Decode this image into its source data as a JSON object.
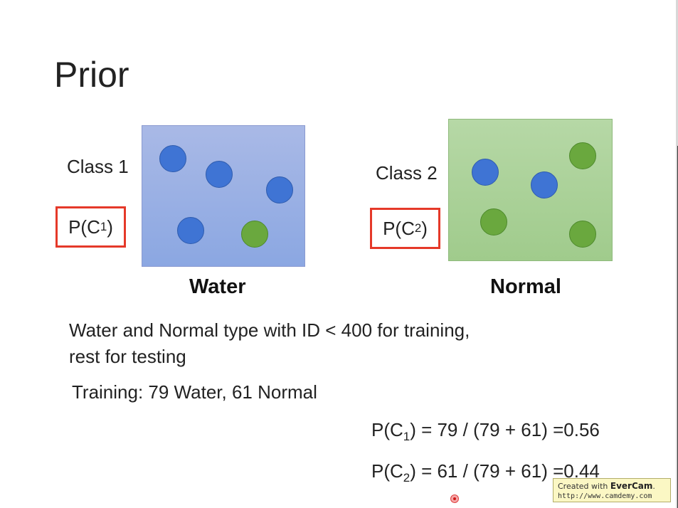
{
  "slide": {
    "title": "Prior",
    "class1": {
      "label": "Class 1",
      "prior_prefix": "P(C",
      "prior_sub": "1",
      "prior_suffix": ")",
      "caption": "Water"
    },
    "class2": {
      "label": "Class 2",
      "prior_prefix": "P(C",
      "prior_sub": "2",
      "prior_suffix": ")",
      "caption": "Normal"
    },
    "description_line1": "Water and Normal type with ID < 400 for training,",
    "description_line2": "rest for testing",
    "training": "Training: 79 Water, 61 Normal",
    "formula1": {
      "prefix": "P(C",
      "sub": "1",
      "rest": ") = 79 / (79 + 61) =0.56"
    },
    "formula2": {
      "prefix": "P(C",
      "sub": "2",
      "rest": ") = 61 / (79 + 61) =0.44"
    }
  },
  "watermark": {
    "prefix": "Created with ",
    "brand": "EverCam",
    "suffix": ".",
    "url": "http://www.camdemy.com"
  },
  "colors": {
    "water_dot": "#3f74d4",
    "normal_dot": "#6aa83e",
    "prior_box_border": "#e53929"
  }
}
